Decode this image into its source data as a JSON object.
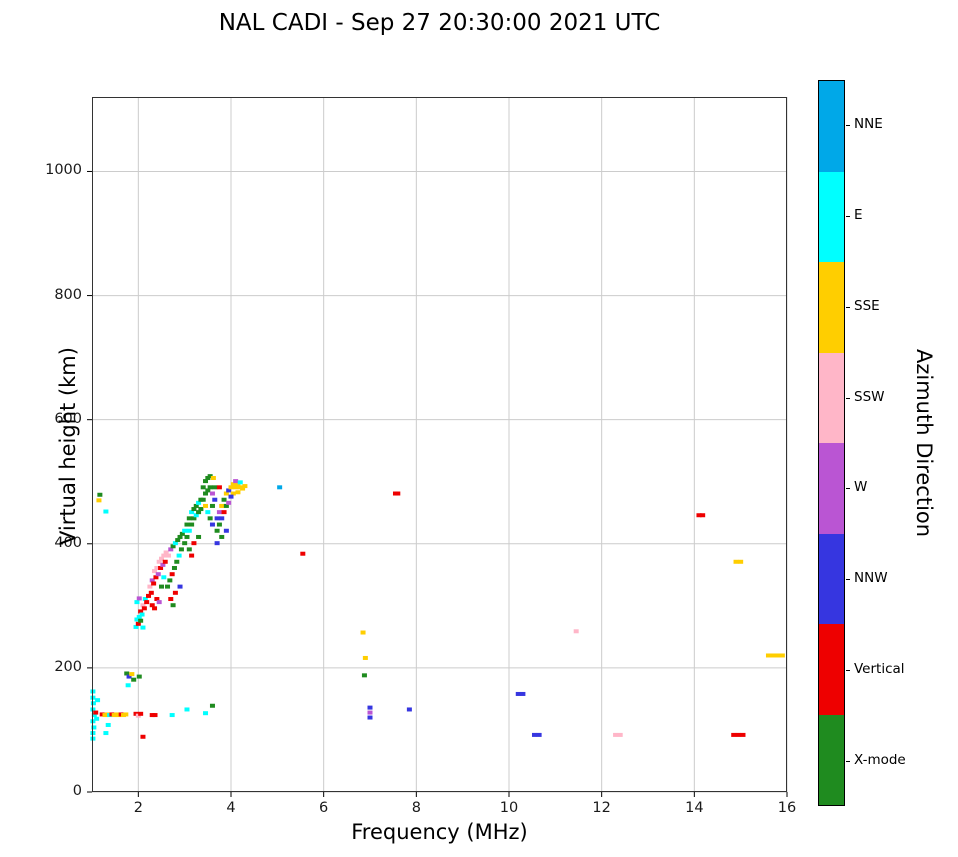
{
  "title": "NAL CADI - Sep 27 20:30:00 2021 UTC",
  "chart_data": {
    "type": "scatter",
    "title": "NAL CADI - Sep 27 20:30:00 2021 UTC",
    "xlabel": "Frequency (MHz)",
    "ylabel": "Virtual height (km)",
    "legend_title": "Azimuth Direction",
    "legend_position": "right-colorbar",
    "grid": true,
    "grid_color": "#cccccc",
    "xlim": [
      1,
      16
    ],
    "ylim": [
      0,
      1120
    ],
    "xticks": [
      2,
      4,
      6,
      8,
      10,
      12,
      14,
      16
    ],
    "yticks": [
      0,
      200,
      400,
      600,
      800,
      1000
    ],
    "categories": [
      {
        "label": "NNE",
        "key": "NNE",
        "color": "#00A8E8"
      },
      {
        "label": "E",
        "key": "E",
        "color": "#00FFFF"
      },
      {
        "label": "SSE",
        "key": "SSE",
        "color": "#FFCE00"
      },
      {
        "label": "SSW",
        "key": "SSW",
        "color": "#FFB6C8"
      },
      {
        "label": "W",
        "key": "W",
        "color": "#BA55D3"
      },
      {
        "label": "NNW",
        "key": "NNW",
        "color": "#3636E0"
      },
      {
        "label": "Vertical",
        "key": "V",
        "color": "#EE0000"
      },
      {
        "label": "X-mode",
        "key": "X",
        "color": "#1F8B1F"
      }
    ],
    "points": [
      [
        1.02,
        162,
        "E"
      ],
      [
        1.02,
        152,
        "E"
      ],
      [
        1.03,
        143,
        "E"
      ],
      [
        1.02,
        133,
        "E"
      ],
      [
        1.05,
        124,
        "E"
      ],
      [
        1.02,
        114,
        "E"
      ],
      [
        1.04,
        104,
        "E"
      ],
      [
        1.02,
        95,
        "E"
      ],
      [
        1.02,
        86,
        "E"
      ],
      [
        1.08,
        128,
        "V"
      ],
      [
        1.1,
        118,
        "E"
      ],
      [
        1.12,
        148,
        "E"
      ],
      [
        1.15,
        470,
        "SSE"
      ],
      [
        1.17,
        479,
        "X"
      ],
      [
        1.3,
        452,
        "E"
      ],
      [
        1.22,
        125,
        "V"
      ],
      [
        1.28,
        124,
        "SSE"
      ],
      [
        1.33,
        125,
        "SSE"
      ],
      [
        1.38,
        124,
        "E"
      ],
      [
        1.43,
        125,
        "V"
      ],
      [
        1.48,
        124,
        "SSE"
      ],
      [
        1.53,
        125,
        "SSE"
      ],
      [
        1.58,
        124,
        "SSE"
      ],
      [
        1.63,
        125,
        "V"
      ],
      [
        1.68,
        124,
        "SSE"
      ],
      [
        1.73,
        125,
        "SSE"
      ],
      [
        1.35,
        108,
        "E"
      ],
      [
        1.3,
        95,
        "E"
      ],
      [
        1.75,
        191,
        "X"
      ],
      [
        1.8,
        186,
        "NNW"
      ],
      [
        1.86,
        190,
        "SSE"
      ],
      [
        1.9,
        181,
        "X"
      ],
      [
        1.78,
        172,
        "E"
      ],
      [
        2.02,
        186,
        "X"
      ],
      [
        1.95,
        126,
        "V"
      ],
      [
        2.0,
        123,
        "SSW"
      ],
      [
        2.05,
        126,
        "V"
      ],
      [
        2.1,
        89,
        "V"
      ],
      [
        2.3,
        124,
        "V"
      ],
      [
        2.36,
        124,
        "V"
      ],
      [
        2.73,
        124,
        "E"
      ],
      [
        3.05,
        133,
        "E"
      ],
      [
        3.45,
        127,
        "E"
      ],
      [
        3.6,
        139,
        "X"
      ],
      [
        1.95,
        266,
        "E"
      ],
      [
        1.97,
        278,
        "E"
      ],
      [
        2.0,
        271,
        "V"
      ],
      [
        2.02,
        282,
        "E"
      ],
      [
        2.05,
        276,
        "X"
      ],
      [
        2.05,
        291,
        "V"
      ],
      [
        2.08,
        286,
        "E"
      ],
      [
        2.1,
        301,
        "SSW"
      ],
      [
        2.13,
        296,
        "V"
      ],
      [
        2.15,
        311,
        "E"
      ],
      [
        2.18,
        306,
        "V"
      ],
      [
        1.97,
        306,
        "E"
      ],
      [
        2.02,
        312,
        "W"
      ],
      [
        2.1,
        265,
        "E"
      ],
      [
        2.22,
        316,
        "V"
      ],
      [
        2.25,
        331,
        "SSW"
      ],
      [
        2.28,
        321,
        "V"
      ],
      [
        2.3,
        341,
        "W"
      ],
      [
        2.33,
        336,
        "V"
      ],
      [
        2.35,
        356,
        "SSW"
      ],
      [
        2.38,
        346,
        "V"
      ],
      [
        2.4,
        361,
        "SSW"
      ],
      [
        2.43,
        351,
        "W"
      ],
      [
        2.45,
        371,
        "SSW"
      ],
      [
        2.48,
        361,
        "V"
      ],
      [
        2.5,
        376,
        "SSW"
      ],
      [
        2.53,
        366,
        "W"
      ],
      [
        2.55,
        381,
        "SSW"
      ],
      [
        2.58,
        371,
        "V"
      ],
      [
        2.6,
        386,
        "SSW"
      ],
      [
        2.3,
        301,
        "V"
      ],
      [
        2.4,
        311,
        "V"
      ],
      [
        2.5,
        331,
        "X"
      ],
      [
        2.55,
        346,
        "E"
      ],
      [
        2.35,
        296,
        "V"
      ],
      [
        2.45,
        306,
        "W"
      ],
      [
        2.63,
        331,
        "X"
      ],
      [
        2.65,
        381,
        "SSW"
      ],
      [
        2.68,
        341,
        "X"
      ],
      [
        2.7,
        391,
        "W"
      ],
      [
        2.73,
        351,
        "V"
      ],
      [
        2.75,
        396,
        "X"
      ],
      [
        2.78,
        361,
        "X"
      ],
      [
        2.8,
        401,
        "E"
      ],
      [
        2.83,
        371,
        "X"
      ],
      [
        2.85,
        406,
        "X"
      ],
      [
        2.88,
        381,
        "E"
      ],
      [
        2.9,
        411,
        "X"
      ],
      [
        2.93,
        391,
        "X"
      ],
      [
        2.95,
        416,
        "X"
      ],
      [
        2.7,
        311,
        "V"
      ],
      [
        2.8,
        321,
        "V"
      ],
      [
        2.75,
        301,
        "X"
      ],
      [
        2.9,
        331,
        "NNW"
      ],
      [
        3.0,
        401,
        "X"
      ],
      [
        3.0,
        421,
        "E"
      ],
      [
        3.05,
        411,
        "X"
      ],
      [
        3.05,
        431,
        "X"
      ],
      [
        3.1,
        421,
        "E"
      ],
      [
        3.1,
        441,
        "X"
      ],
      [
        3.15,
        431,
        "X"
      ],
      [
        3.15,
        451,
        "E"
      ],
      [
        3.2,
        441,
        "X"
      ],
      [
        3.2,
        456,
        "X"
      ],
      [
        3.25,
        446,
        "E"
      ],
      [
        3.25,
        461,
        "X"
      ],
      [
        3.3,
        451,
        "X"
      ],
      [
        3.3,
        466,
        "E"
      ],
      [
        3.35,
        456,
        "X"
      ],
      [
        3.35,
        471,
        "X"
      ],
      [
        3.1,
        391,
        "X"
      ],
      [
        3.2,
        401,
        "V"
      ],
      [
        3.3,
        411,
        "X"
      ],
      [
        3.15,
        381,
        "V"
      ],
      [
        3.4,
        471,
        "X"
      ],
      [
        3.4,
        491,
        "X"
      ],
      [
        3.45,
        481,
        "X"
      ],
      [
        3.45,
        501,
        "X"
      ],
      [
        3.5,
        486,
        "X"
      ],
      [
        3.5,
        506,
        "X"
      ],
      [
        3.55,
        491,
        "X"
      ],
      [
        3.55,
        509,
        "X"
      ],
      [
        3.6,
        481,
        "W"
      ],
      [
        3.6,
        461,
        "X"
      ],
      [
        3.65,
        471,
        "NNW"
      ],
      [
        3.65,
        491,
        "X"
      ],
      [
        3.5,
        451,
        "E"
      ],
      [
        3.55,
        441,
        "X"
      ],
      [
        3.6,
        431,
        "NNW"
      ],
      [
        3.45,
        461,
        "SSE"
      ],
      [
        3.62,
        506,
        "SSE"
      ],
      [
        3.7,
        441,
        "NNW"
      ],
      [
        3.7,
        421,
        "X"
      ],
      [
        3.75,
        451,
        "W"
      ],
      [
        3.75,
        431,
        "X"
      ],
      [
        3.8,
        461,
        "SSE"
      ],
      [
        3.8,
        441,
        "NNW"
      ],
      [
        3.85,
        471,
        "X"
      ],
      [
        3.85,
        451,
        "V"
      ],
      [
        3.9,
        481,
        "SSE"
      ],
      [
        3.9,
        461,
        "X"
      ],
      [
        3.95,
        486,
        "NNW"
      ],
      [
        3.95,
        466,
        "W"
      ],
      [
        3.7,
        401,
        "NNW"
      ],
      [
        3.8,
        411,
        "X"
      ],
      [
        3.9,
        421,
        "NNW"
      ],
      [
        3.75,
        491,
        "V"
      ],
      [
        4.0,
        491,
        "SSE"
      ],
      [
        4.05,
        496,
        "SSE"
      ],
      [
        4.1,
        491,
        "SSE"
      ],
      [
        4.15,
        496,
        "SSE"
      ],
      [
        4.2,
        491,
        "SSE"
      ],
      [
        4.25,
        489,
        "SSE"
      ],
      [
        4.3,
        493,
        "SSE"
      ],
      [
        4.05,
        481,
        "SSE"
      ],
      [
        4.15,
        483,
        "SSE"
      ],
      [
        4.1,
        501,
        "W"
      ],
      [
        4.2,
        499,
        "E"
      ],
      [
        4.0,
        476,
        "NNW"
      ],
      [
        5.05,
        491,
        "NNE"
      ],
      [
        5.55,
        384,
        "V"
      ],
      [
        6.85,
        257,
        "SSE"
      ],
      [
        6.9,
        216,
        "SSE"
      ],
      [
        6.88,
        188,
        "X"
      ],
      [
        7.0,
        136,
        "NNW"
      ],
      [
        7.0,
        128,
        "W"
      ],
      [
        7.0,
        120,
        "NNW"
      ],
      [
        7.55,
        481,
        "V"
      ],
      [
        7.6,
        481,
        "V"
      ],
      [
        7.85,
        133,
        "NNW"
      ],
      [
        10.2,
        158,
        "NNW"
      ],
      [
        10.3,
        158,
        "NNW"
      ],
      [
        10.55,
        92,
        "NNW"
      ],
      [
        10.65,
        92,
        "NNW"
      ],
      [
        11.45,
        259,
        "SSW"
      ],
      [
        12.3,
        92,
        "SSW"
      ],
      [
        12.4,
        92,
        "SSW"
      ],
      [
        14.1,
        446,
        "V"
      ],
      [
        14.18,
        446,
        "V"
      ],
      [
        14.9,
        371,
        "SSE"
      ],
      [
        15.0,
        371,
        "SSE"
      ],
      [
        14.85,
        92,
        "V"
      ],
      [
        14.95,
        92,
        "V"
      ],
      [
        15.05,
        92,
        "V"
      ],
      [
        15.6,
        220,
        "SSE"
      ],
      [
        15.7,
        220,
        "SSE"
      ],
      [
        15.8,
        220,
        "SSE"
      ],
      [
        15.9,
        220,
        "SSE"
      ]
    ]
  }
}
